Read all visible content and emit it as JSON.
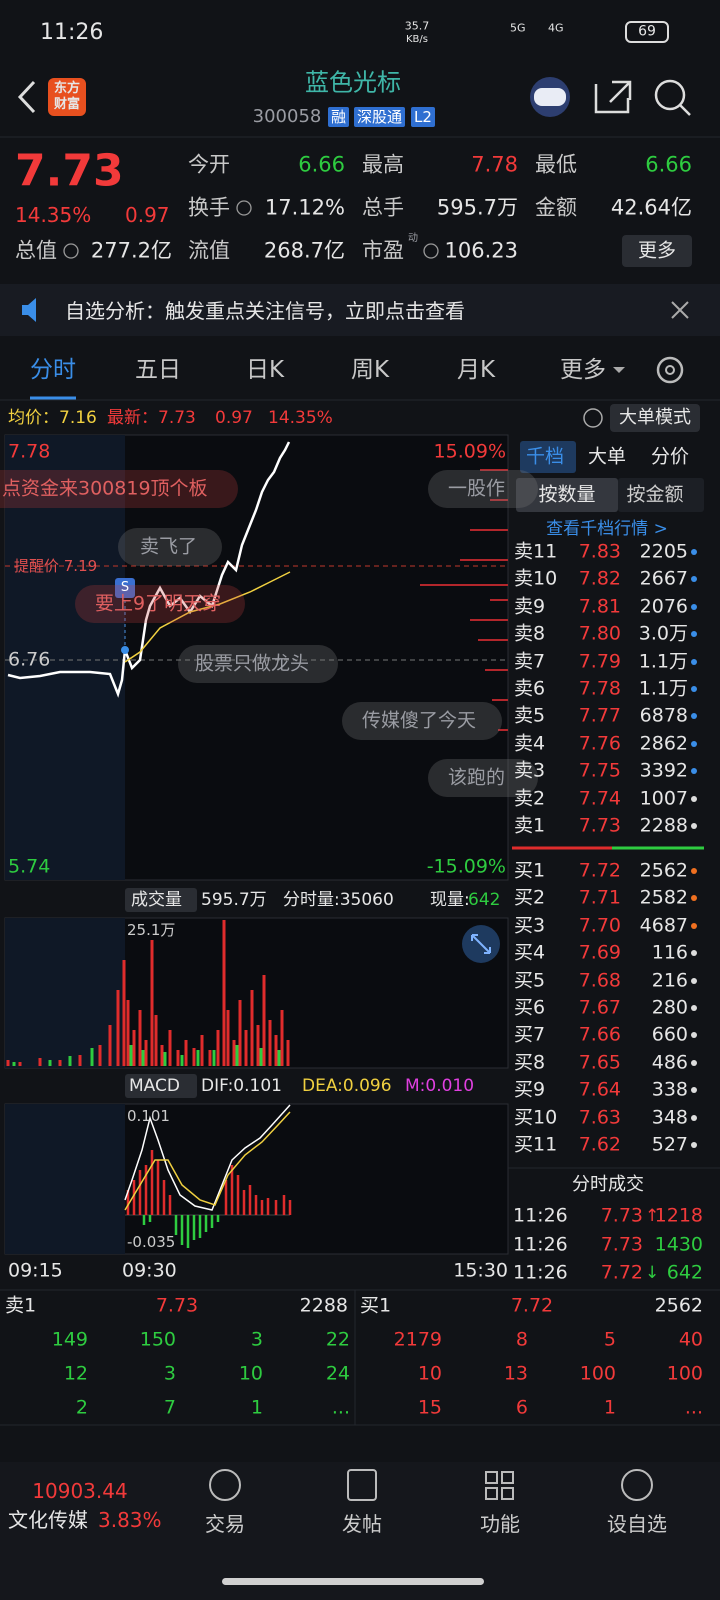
{
  "status_bar": {
    "time": "11:26",
    "net_speed": "35.7",
    "net_unit": "KB/s",
    "network": [
      "5G",
      "4G"
    ],
    "battery": "69"
  },
  "header": {
    "logo": [
      "东方",
      "财富"
    ],
    "title": "蓝色光标",
    "code": "300058",
    "tags": [
      "融",
      "深股通",
      "L2"
    ]
  },
  "quote": {
    "price": "7.73",
    "change_pct": "14.35%",
    "change": "0.97",
    "stats": [
      {
        "label": "今开",
        "value": "6.66"
      },
      {
        "label": "最高",
        "value": "7.78"
      },
      {
        "label": "最低",
        "value": "6.66"
      },
      {
        "label": "换手",
        "value": "17.12%"
      },
      {
        "label": "总手",
        "value": "595.7万"
      },
      {
        "label": "金额",
        "value": "42.64亿"
      },
      {
        "label": "总值",
        "value": "277.2亿"
      },
      {
        "label": "流值",
        "value": "268.7亿"
      },
      {
        "label": "市盈",
        "value": "106.23",
        "sup": "动"
      }
    ],
    "more": "更多"
  },
  "notice": "自选分析：触发重点关注信号，立即点击查看",
  "tabs": [
    "分时",
    "五日",
    "日K",
    "周K",
    "月K",
    "更多"
  ],
  "chart": {
    "avg": "均价：7.16",
    "latest": "最新：7.73",
    "change": "0.97",
    "change_pct": "14.35%",
    "mode_button": "大单模式",
    "price_high": "7.78",
    "pct_high": "15.09%",
    "price_mid": "6.76",
    "price_low": "5.74",
    "pct_low": "-15.09%",
    "alert": "提醒价 7.19",
    "marker": "S",
    "comments": [
      "点资金来300819顶个板",
      "一股作",
      "卖飞了",
      "要上9了明天穿",
      "股票只做龙头",
      "传媒傻了今天",
      "该跑的"
    ],
    "volume": {
      "label": "成交量",
      "total": "595.7万",
      "tick_volume": "分时量:35060",
      "current_label": "现量:",
      "current": "642",
      "max": "25.1万"
    },
    "macd": {
      "label": "MACD",
      "dif": "DIF:0.101",
      "dea": "DEA:0.096",
      "m": "M:0.010",
      "max": "0.101",
      "min": "-0.035"
    },
    "times": [
      "09:15",
      "09:30",
      "15:30"
    ]
  },
  "order_book": {
    "tabs": [
      "千档",
      "大单",
      "分价"
    ],
    "modes": [
      "按数量",
      "按金额"
    ],
    "link": "查看千档行情 >",
    "asks": [
      {
        "label": "卖11",
        "price": "7.83",
        "volume": "2205"
      },
      {
        "label": "卖10",
        "price": "7.82",
        "volume": "2667"
      },
      {
        "label": "卖9",
        "price": "7.81",
        "volume": "2076"
      },
      {
        "label": "卖8",
        "price": "7.80",
        "volume": "3.0万"
      },
      {
        "label": "卖7",
        "price": "7.79",
        "volume": "1.1万"
      },
      {
        "label": "卖6",
        "price": "7.78",
        "volume": "1.1万"
      },
      {
        "label": "卖5",
        "price": "7.77",
        "volume": "6878"
      },
      {
        "label": "卖4",
        "price": "7.76",
        "volume": "2862"
      },
      {
        "label": "卖3",
        "price": "7.75",
        "volume": "3392"
      },
      {
        "label": "卖2",
        "price": "7.74",
        "volume": "1007"
      },
      {
        "label": "卖1",
        "price": "7.73",
        "volume": "2288"
      }
    ],
    "bids": [
      {
        "label": "买1",
        "price": "7.72",
        "volume": "2562"
      },
      {
        "label": "买2",
        "price": "7.71",
        "volume": "2582"
      },
      {
        "label": "买3",
        "price": "7.70",
        "volume": "4687"
      },
      {
        "label": "买4",
        "price": "7.69",
        "volume": "116"
      },
      {
        "label": "买5",
        "price": "7.68",
        "volume": "216"
      },
      {
        "label": "买6",
        "price": "7.67",
        "volume": "280"
      },
      {
        "label": "买7",
        "price": "7.66",
        "volume": "660"
      },
      {
        "label": "买8",
        "price": "7.65",
        "volume": "486"
      },
      {
        "label": "买9",
        "price": "7.64",
        "volume": "338"
      },
      {
        "label": "买10",
        "price": "7.63",
        "volume": "348"
      },
      {
        "label": "买11",
        "price": "7.62",
        "volume": "527"
      }
    ]
  },
  "trades": {
    "title": "分时成交",
    "rows": [
      {
        "time": "11:26",
        "price": "7.73",
        "dir": "↑",
        "volume": "1218"
      },
      {
        "time": "11:26",
        "price": "7.73",
        "volume": "1430"
      },
      {
        "time": "11:26",
        "price": "7.72",
        "dir": "↓",
        "volume": "642"
      }
    ]
  },
  "summary": {
    "ask": {
      "label": "卖1",
      "price": "7.73",
      "volume": "2288",
      "orders": [
        [
          "149",
          "150",
          "3",
          "22"
        ],
        [
          "12",
          "3",
          "10",
          "24"
        ],
        [
          "2",
          "7",
          "1",
          "..."
        ]
      ]
    },
    "bid": {
      "label": "买1",
      "price": "7.72",
      "volume": "2562",
      "orders": [
        [
          "2179",
          "8",
          "5",
          "40"
        ],
        [
          "10",
          "13",
          "100",
          "100"
        ],
        [
          "15",
          "6",
          "1",
          "..."
        ]
      ]
    }
  },
  "nav": {
    "index_value": "10903.44",
    "index_name": "文化传媒",
    "index_pct": "3.83%",
    "items": [
      "交易",
      "发帖",
      "功能",
      "设自选"
    ]
  }
}
